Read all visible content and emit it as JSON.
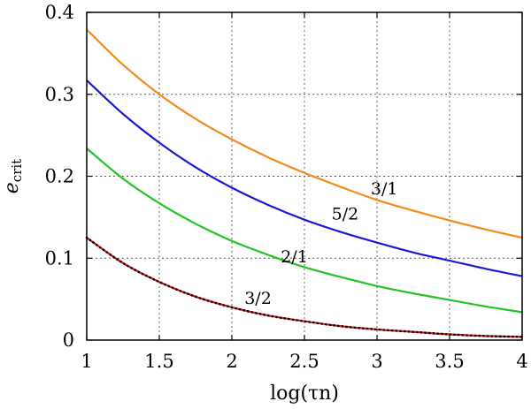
{
  "chart_data": {
    "type": "line",
    "title": "",
    "xlabel": "log(τn)",
    "ylabel_main": "e",
    "ylabel_sub": "crit",
    "xlim": [
      1,
      4
    ],
    "ylim": [
      0,
      0.4
    ],
    "xticks": [
      1,
      1.5,
      2,
      2.5,
      3,
      3.5,
      4
    ],
    "xtick_labels": [
      "1",
      "1.5",
      "2",
      "2.5",
      "3",
      "3.5",
      "4"
    ],
    "yticks": [
      0,
      0.1,
      0.2,
      0.3,
      0.4
    ],
    "ytick_labels": [
      "0",
      "0.1",
      "0.2",
      "0.3",
      "0.4"
    ],
    "grid": true,
    "x": [
      1,
      1.25,
      1.5,
      1.75,
      2,
      2.25,
      2.5,
      2.75,
      3,
      3.25,
      3.5,
      3.75,
      4
    ],
    "series": [
      {
        "name": "3/1",
        "color": "#f28a1e",
        "label_text": "3/1",
        "label_at": [
          3.05,
          0.178
        ],
        "values": [
          0.379,
          0.336,
          0.3,
          0.27,
          0.245,
          0.223,
          0.204,
          0.187,
          0.171,
          0.158,
          0.146,
          0.135,
          0.125
        ]
      },
      {
        "name": "5/2",
        "color": "#1a1ad6",
        "label_text": "5/2",
        "label_at": [
          2.78,
          0.147
        ],
        "values": [
          0.317,
          0.276,
          0.241,
          0.211,
          0.186,
          0.165,
          0.147,
          0.132,
          0.119,
          0.107,
          0.097,
          0.087,
          0.078
        ]
      },
      {
        "name": "2/1",
        "color": "#22c322",
        "label_text": "2/1",
        "label_at": [
          2.43,
          0.095
        ],
        "values": [
          0.234,
          0.197,
          0.167,
          0.142,
          0.121,
          0.104,
          0.089,
          0.077,
          0.066,
          0.057,
          0.049,
          0.041,
          0.034
        ]
      },
      {
        "name": "3/2",
        "color": "#e01414",
        "label_text": "3/2",
        "label_at": [
          2.18,
          0.044
        ],
        "values": [
          0.125,
          0.094,
          0.071,
          0.053,
          0.04,
          0.03,
          0.023,
          0.017,
          0.013,
          0.01,
          0.007,
          0.005,
          0.004
        ]
      }
    ],
    "dotted_overlay_series": "3/2"
  }
}
